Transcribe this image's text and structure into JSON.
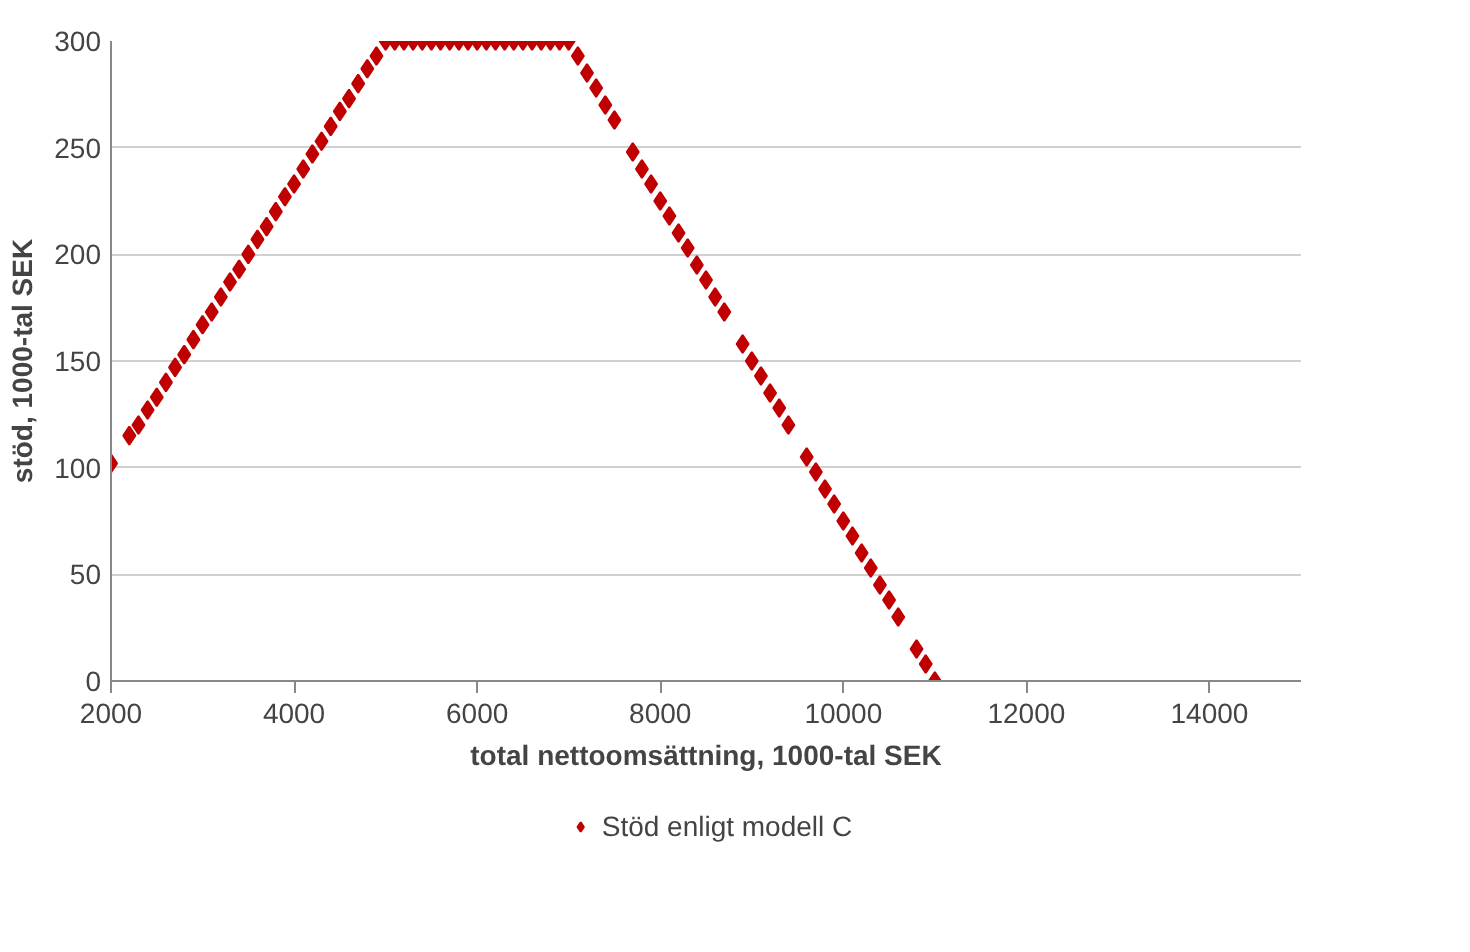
{
  "chart_data": {
    "type": "scatter",
    "xlabel": "total nettoomsättning, 1000-tal SEK",
    "ylabel": "stöd, 1000-tal SEK",
    "x": [
      2000,
      2200,
      2300,
      2400,
      2500,
      2600,
      2700,
      2800,
      2900,
      3000,
      3100,
      3200,
      3300,
      3400,
      3500,
      3600,
      3700,
      3800,
      3900,
      4000,
      4100,
      4200,
      4300,
      4400,
      4500,
      4600,
      4700,
      4800,
      4900,
      5000,
      5100,
      5200,
      5300,
      5400,
      5500,
      5600,
      5700,
      5800,
      5900,
      6000,
      6100,
      6200,
      6300,
      6400,
      6500,
      6600,
      6700,
      6800,
      6900,
      7000,
      7100,
      7200,
      7300,
      7400,
      7500,
      7700,
      7800,
      7900,
      8000,
      8100,
      8200,
      8300,
      8400,
      8500,
      8600,
      8700,
      8900,
      9000,
      9100,
      9200,
      9300,
      9400,
      9600,
      9700,
      9800,
      9900,
      10000,
      10100,
      10200,
      10300,
      10400,
      10500,
      10600,
      10800,
      10900,
      11000
    ],
    "series": [
      {
        "name": "Stöd enligt modell C",
        "color": "#c00000",
        "values": [
          102,
          115,
          120,
          127,
          133,
          140,
          147,
          153,
          160,
          167,
          173,
          180,
          187,
          193,
          200,
          207,
          213,
          220,
          227,
          233,
          240,
          247,
          253,
          260,
          267,
          273,
          280,
          287,
          293,
          300,
          300,
          300,
          300,
          300,
          300,
          300,
          300,
          300,
          300,
          300,
          300,
          300,
          300,
          300,
          300,
          300,
          300,
          300,
          300,
          300,
          293,
          285,
          278,
          270,
          263,
          248,
          240,
          233,
          225,
          218,
          210,
          203,
          195,
          188,
          180,
          173,
          158,
          150,
          143,
          135,
          128,
          120,
          105,
          98,
          90,
          83,
          75,
          68,
          60,
          53,
          45,
          38,
          30,
          15,
          8,
          0
        ]
      }
    ],
    "xlim": [
      2000,
      15000
    ],
    "xticks": [
      2000,
      4000,
      6000,
      8000,
      10000,
      12000,
      14000
    ],
    "ylim": [
      0,
      300
    ],
    "yticks": [
      0,
      50,
      100,
      150,
      200,
      250,
      300
    ],
    "grid": "y",
    "legend": "bottom",
    "marker": "diamond"
  }
}
